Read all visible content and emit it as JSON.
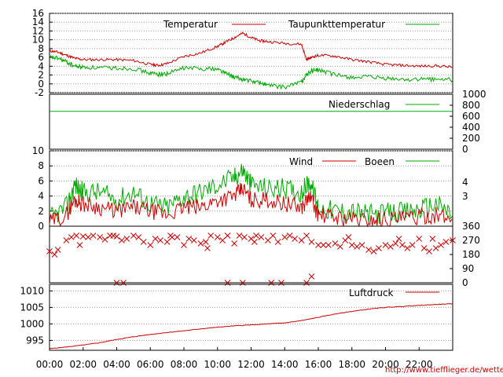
{
  "colors": {
    "red": "#cc0000",
    "green": "#00aa00",
    "grid": "#9a9a9a",
    "url": "#cc0000"
  },
  "url": "http://www.tiefflieger.de/wetter/",
  "x_ticks": [
    "00:00",
    "02:00",
    "04:00",
    "06:00",
    "08:00",
    "10:00",
    "12:00",
    "14:00",
    "16:00",
    "18:00",
    "20:00",
    "22:00"
  ],
  "chart_data": [
    {
      "type": "line",
      "legend": [
        "Temperatur",
        "Taupunkttemperatur"
      ],
      "ylim": [
        -2,
        16
      ],
      "yticks": [
        "16",
        "14",
        "12",
        "10",
        "8",
        "6",
        "4",
        "2",
        "0",
        "-2"
      ],
      "x": [
        0,
        0.5,
        1,
        1.5,
        2,
        3,
        4,
        5,
        6,
        6.5,
        7,
        8,
        9,
        10,
        10.5,
        11,
        11.5,
        12,
        12.5,
        13,
        14,
        15,
        15.3,
        15.6,
        16,
        17,
        18,
        19,
        20,
        21,
        22,
        23,
        24
      ],
      "series": [
        {
          "name": "Temperatur",
          "values": [
            7.5,
            7.2,
            6.5,
            5.8,
            5.5,
            5.5,
            5.5,
            5.3,
            4.4,
            4.2,
            4.6,
            6.2,
            7.0,
            8.5,
            9.5,
            10.5,
            11.5,
            10.5,
            9.8,
            9.6,
            9.2,
            9.0,
            5.5,
            6.0,
            6.5,
            6.3,
            5.5,
            5.0,
            4.4,
            4.2,
            4.0,
            4.1,
            3.8
          ]
        },
        {
          "name": "Taupunkttemperatur",
          "values": [
            6.0,
            5.8,
            5.0,
            4.0,
            3.8,
            3.6,
            3.6,
            3.5,
            2.4,
            2.2,
            2.3,
            3.6,
            3.5,
            3.4,
            2.4,
            1.5,
            1.0,
            0.6,
            0.3,
            -0.3,
            -0.8,
            0.5,
            2.0,
            3.0,
            3.2,
            2.0,
            1.5,
            1.5,
            1.2,
            1.0,
            1.0,
            1.1,
            0.9
          ]
        }
      ]
    },
    {
      "type": "line",
      "legend": [
        "Niederschlag"
      ],
      "ylim": [
        0,
        1000
      ],
      "yticks": [
        "1000",
        "800",
        "600",
        "400",
        "200",
        "0"
      ],
      "x": [
        0,
        24
      ],
      "series": [
        {
          "name": "Niederschlag",
          "values": [
            690,
            690
          ]
        }
      ]
    },
    {
      "type": "line",
      "legend": [
        "Wind",
        "Boeen"
      ],
      "ylim": [
        0,
        10
      ],
      "yticks": [
        "10",
        "8",
        "6",
        "4",
        "2",
        "0"
      ],
      "right_ticks": [
        "4",
        "3"
      ],
      "x": [
        0,
        1,
        1.5,
        2,
        3,
        4,
        5,
        6,
        7,
        8,
        9,
        10,
        11,
        11.5,
        12,
        13,
        14,
        15,
        15.5,
        16,
        17,
        18,
        19,
        20,
        21,
        22,
        23,
        24
      ],
      "series": [
        {
          "name": "Wind",
          "values": [
            0.5,
            1.5,
            3.5,
            3.0,
            2.5,
            2.0,
            2.5,
            2.0,
            1.5,
            2.5,
            2.5,
            3.5,
            4.0,
            5.0,
            3.5,
            3.5,
            3.0,
            2.5,
            4.0,
            1.5,
            1.2,
            1.0,
            0.8,
            1.0,
            1.0,
            1.2,
            1.5,
            0.8
          ]
        },
        {
          "name": "Boeen",
          "values": [
            1.0,
            2.5,
            5.5,
            4.5,
            4.5,
            3.5,
            4.5,
            3.0,
            2.5,
            4.0,
            4.5,
            5.5,
            6.5,
            7.5,
            5.5,
            5.0,
            5.0,
            4.5,
            6.0,
            2.5,
            2.0,
            2.0,
            1.5,
            1.8,
            1.8,
            2.2,
            3.0,
            1.5
          ]
        }
      ]
    },
    {
      "type": "scatter",
      "legend": [],
      "ylim": [
        0,
        360
      ],
      "yticks": [
        "360",
        "270",
        "180",
        "90",
        "0"
      ],
      "series": [
        {
          "name": "",
          "x": [
            0,
            0.5,
            1,
            1.3,
            1.6,
            2,
            2.3,
            2.6,
            3,
            3.3,
            3.6,
            4,
            4.3,
            4.6,
            5,
            5.3,
            5.6,
            6,
            6.3,
            6.6,
            7,
            7.3,
            7.6,
            8,
            8.3,
            8.6,
            9,
            9.3,
            9.6,
            10,
            10.3,
            10.6,
            11,
            11.3,
            11.6,
            12,
            12.3,
            12.6,
            13,
            13.3,
            13.6,
            14,
            14.3,
            14.6,
            15,
            15.3,
            15.6,
            16,
            16.3,
            16.6,
            17,
            17.3,
            17.6,
            18,
            18.3,
            18.6,
            19,
            19.3,
            19.6,
            20,
            20.3,
            20.6,
            21,
            21.3,
            21.6,
            22,
            22.3,
            22.6,
            23,
            23.3,
            23.6,
            24,
            4.0,
            4.4,
            10.6,
            11.5,
            13.2,
            13.8,
            15.3,
            15.6,
            0.3,
            1.8,
            3.8,
            7.2,
            9.4,
            12.2,
            17.8,
            20.8,
            22.8
          ],
          "values": [
            200,
            210,
            270,
            290,
            300,
            295,
            290,
            300,
            290,
            275,
            300,
            295,
            270,
            280,
            300,
            290,
            260,
            240,
            280,
            270,
            260,
            290,
            290,
            240,
            280,
            270,
            250,
            260,
            300,
            290,
            270,
            300,
            250,
            300,
            290,
            280,
            300,
            290,
            270,
            300,
            260,
            290,
            300,
            280,
            270,
            300,
            260,
            240,
            240,
            240,
            250,
            230,
            270,
            240,
            230,
            240,
            210,
            200,
            220,
            240,
            230,
            250,
            240,
            220,
            240,
            280,
            220,
            200,
            220,
            240,
            260,
            270,
            0,
            0,
            0,
            0,
            0,
            0,
            0,
            40,
            180,
            240,
            300,
            300,
            220,
            260,
            290,
            280,
            280
          ]
        }
      ]
    },
    {
      "type": "line",
      "legend": [
        "Luftdruck"
      ],
      "ylim": [
        992,
        1012
      ],
      "yticks": [
        "1010",
        "1005",
        "1000",
        "995"
      ],
      "x": [
        0,
        1,
        2,
        3,
        4,
        5,
        6,
        7,
        8,
        9,
        10,
        11,
        12,
        13,
        14,
        15,
        16,
        17,
        18,
        19,
        20,
        21,
        22,
        23,
        24
      ],
      "series": [
        {
          "name": "Luftdruck",
          "values": [
            992.5,
            993.0,
            993.6,
            994.3,
            995.3,
            996.1,
            996.8,
            997.4,
            997.9,
            998.5,
            999.0,
            999.4,
            999.7,
            1000.0,
            1000.3,
            1001.0,
            1002.0,
            1003.0,
            1003.8,
            1004.5,
            1005.0,
            1005.3,
            1005.6,
            1005.9,
            1006.1
          ]
        }
      ]
    }
  ]
}
